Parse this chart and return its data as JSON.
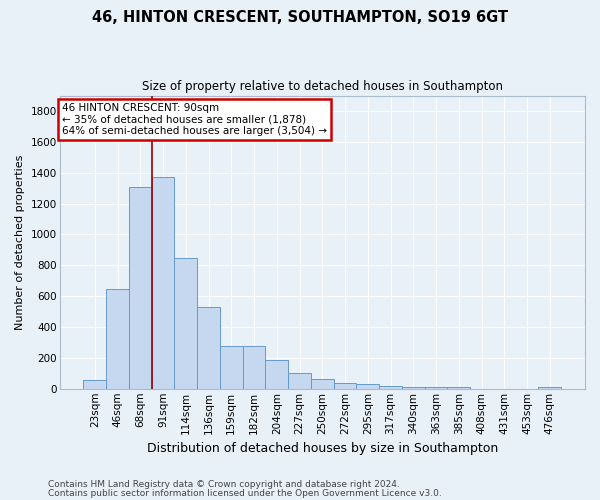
{
  "title": "46, HINTON CRESCENT, SOUTHAMPTON, SO19 6GT",
  "subtitle": "Size of property relative to detached houses in Southampton",
  "xlabel": "Distribution of detached houses by size in Southampton",
  "ylabel": "Number of detached properties",
  "footer1": "Contains HM Land Registry data © Crown copyright and database right 2024.",
  "footer2": "Contains public sector information licensed under the Open Government Licence v3.0.",
  "categories": [
    "23sqm",
    "46sqm",
    "68sqm",
    "91sqm",
    "114sqm",
    "136sqm",
    "159sqm",
    "182sqm",
    "204sqm",
    "227sqm",
    "250sqm",
    "272sqm",
    "295sqm",
    "317sqm",
    "340sqm",
    "363sqm",
    "385sqm",
    "408sqm",
    "431sqm",
    "453sqm",
    "476sqm"
  ],
  "values": [
    55,
    645,
    1305,
    1375,
    845,
    530,
    275,
    275,
    185,
    105,
    65,
    38,
    32,
    20,
    10,
    10,
    10,
    0,
    0,
    0,
    10
  ],
  "bar_color": "#c5d8f0",
  "bar_edge_color": "#6699cc",
  "bg_color": "#e8f0f8",
  "plot_bg_color": "#e8f0f8",
  "grid_color": "#ffffff",
  "vline_color": "#990000",
  "vline_x_index": 2,
  "annotation_text": "46 HINTON CRESCENT: 90sqm\n← 35% of detached houses are smaller (1,878)\n64% of semi-detached houses are larger (3,504) →",
  "annotation_box_facecolor": "#ffffff",
  "annotation_box_edgecolor": "#cc0000",
  "ylim": [
    0,
    1900
  ],
  "yticks": [
    0,
    200,
    400,
    600,
    800,
    1000,
    1200,
    1400,
    1600,
    1800
  ],
  "title_fontsize": 10.5,
  "subtitle_fontsize": 8.5,
  "ylabel_fontsize": 8,
  "xlabel_fontsize": 9,
  "tick_fontsize": 7.5,
  "footer_fontsize": 6.5
}
